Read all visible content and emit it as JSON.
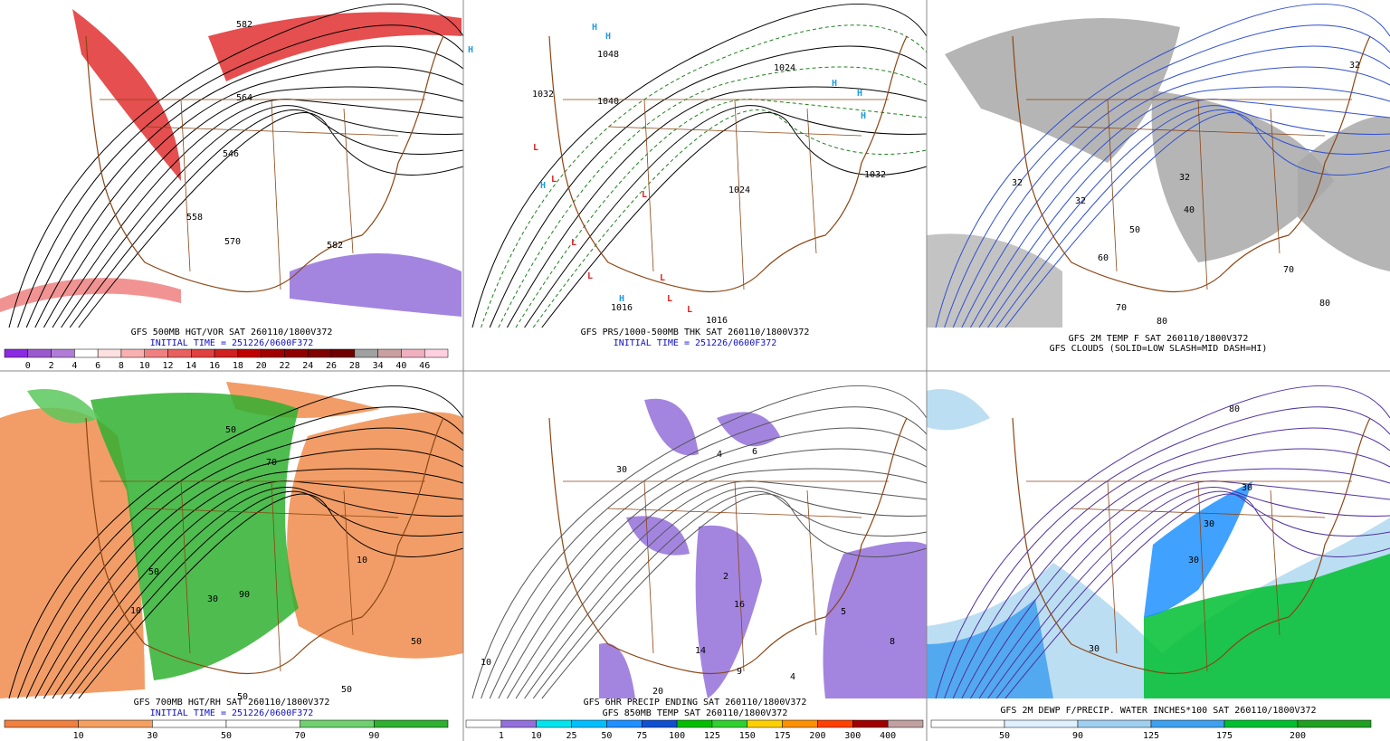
{
  "panels": [
    {
      "captions": [
        "GFS 500MB HGT/VOR SAT 260110/1800V372",
        "INITIAL TIME = 251226/0600F372"
      ],
      "colorbar": [
        0,
        2,
        4,
        6,
        8,
        10,
        12,
        14,
        16,
        18,
        20,
        22,
        24,
        26,
        28,
        34,
        40,
        46
      ],
      "map_labels": [
        "582",
        "564",
        "546",
        "558",
        "570",
        "582"
      ]
    },
    {
      "captions": [
        "GFS PRS/1000-500MB THK SAT 260110/1800V372",
        "INITIAL TIME = 251226/0600F372"
      ],
      "colorbar": [],
      "map_labels": [
        "1048",
        "1032",
        "1040",
        "1024",
        "1032",
        "1024",
        "1016",
        "1016",
        "H",
        "H",
        "H",
        "H",
        "H",
        "H",
        "H",
        "H",
        "L",
        "L",
        "L",
        "L",
        "L",
        "L",
        "L",
        "L"
      ]
    },
    {
      "captions": [
        "GFS 2M TEMP F SAT 260110/1800V372",
        "GFS CLOUDS (SOLID=LOW SLASH=MID DASH=HI)"
      ],
      "colorbar": [],
      "map_labels": [
        "32",
        "32",
        "32",
        "32",
        "40",
        "50",
        "60",
        "70",
        "80",
        "70",
        "80"
      ]
    },
    {
      "captions": [
        "GFS 700MB HGT/RH SAT 260110/1800V372",
        "INITIAL TIME = 251226/0600F372"
      ],
      "colorbar": [
        10,
        30,
        50,
        70,
        90
      ],
      "map_labels": [
        "50",
        "70",
        "50",
        "30",
        "90",
        "10",
        "50",
        "50",
        "50",
        "10"
      ]
    },
    {
      "captions": [
        "GFS 6HR PRECIP ENDING SAT 260110/1800V372",
        "GFS 850MB TEMP SAT 260110/1800V372"
      ],
      "colorbar": [
        1,
        10,
        25,
        50,
        75,
        100,
        125,
        150,
        175,
        200,
        300,
        400
      ],
      "map_labels": [
        "30",
        "4",
        "6",
        "2",
        "16",
        "14",
        "9",
        "4",
        "5",
        "8",
        "20",
        "10"
      ]
    },
    {
      "captions": [
        "GFS 2M DEWP F/PRECIP. WATER INCHES*100 SAT 260110/1800V372"
      ],
      "colorbar": [
        50,
        90,
        125,
        175,
        200
      ],
      "map_labels": [
        "80",
        "30",
        "30",
        "30",
        "30"
      ]
    }
  ]
}
